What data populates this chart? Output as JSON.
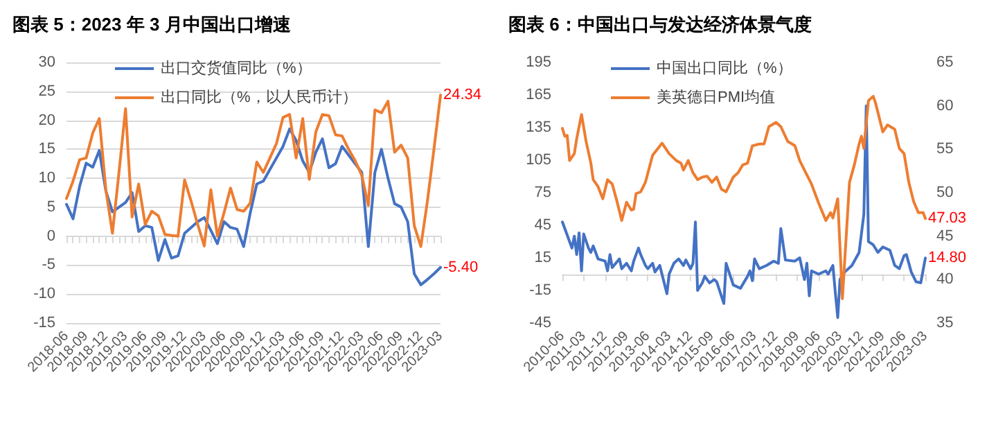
{
  "chart_data": [
    {
      "type": "line",
      "title": "图表 5：2023 年 3 月中国出口增速",
      "categories": [
        "2018-06",
        null,
        null,
        "2018-09",
        null,
        null,
        "2018-12",
        null,
        null,
        "2019-03",
        null,
        null,
        "2019-06",
        null,
        null,
        "2019-09",
        null,
        null,
        "2019-12",
        null,
        null,
        "2020-03",
        null,
        null,
        "2020-06",
        null,
        null,
        "2020-09",
        null,
        null,
        "2020-12",
        null,
        null,
        "2021-03",
        null,
        null,
        "2021-06",
        null,
        null,
        "2021-09",
        null,
        null,
        "2021-12",
        null,
        null,
        "2022-03",
        null,
        null,
        "2022-06",
        null,
        null,
        "2022-09",
        null,
        null,
        "2022-12",
        null,
        null,
        "2023-03"
      ],
      "series": [
        {
          "name": "出口交货值同比（%）",
          "color": "#4472c4",
          "values": [
            5.5,
            3.0,
            8.6,
            12.6,
            11.9,
            14.8,
            7.8,
            4.2,
            5.0,
            5.8,
            7.5,
            0.8,
            1.8,
            1.5,
            -4.2,
            -0.6,
            -3.8,
            -3.4,
            0.5,
            1.5,
            2.5,
            3.2,
            1.0,
            -1.3,
            2.5,
            1.5,
            1.2,
            -1.8,
            4.0,
            9.0,
            9.5,
            11.5,
            13.5,
            15.5,
            18.5,
            16.5,
            13.0,
            11.0,
            14.5,
            16.8,
            11.8,
            12.5,
            15.5,
            14.0,
            12.5,
            11.0,
            -1.8,
            11.0,
            15.0,
            10.0,
            5.6,
            5.0,
            2.5,
            -6.5,
            -8.4,
            -7.5,
            -6.5,
            -5.4
          ],
          "value_labels": [
            null,
            null,
            null,
            null,
            null,
            null,
            null,
            null,
            null,
            null,
            null,
            null,
            null,
            null,
            null,
            null,
            null,
            null,
            null,
            null,
            null,
            null,
            null,
            null,
            null,
            null,
            null,
            null,
            null,
            null,
            null,
            null,
            null,
            null,
            null,
            null,
            null,
            null,
            null,
            null,
            null,
            null,
            null,
            null,
            null,
            null,
            null,
            null,
            null,
            null,
            null,
            null,
            null,
            null,
            null,
            null,
            null,
            "-5.40"
          ]
        },
        {
          "name": "出口同比（%，以人民币计）",
          "color": "#ed7d31",
          "values": [
            6.5,
            9.5,
            13.2,
            13.5,
            17.8,
            20.3,
            8.0,
            0.5,
            11.0,
            22.0,
            3.3,
            9.0,
            2.0,
            4.3,
            3.5,
            0.3,
            0.1,
            0.0,
            9.7,
            6.0,
            2.0,
            -1.7,
            8.0,
            0.0,
            4.0,
            8.3,
            4.6,
            4.3,
            5.7,
            12.8,
            11.0,
            13.5,
            16.0,
            20.5,
            21.0,
            13.5,
            20.3,
            9.8,
            18.0,
            21.0,
            20.8,
            17.5,
            17.3,
            15.0,
            13.0,
            10.5,
            5.3,
            21.8,
            21.3,
            23.3,
            14.5,
            15.7,
            13.5,
            1.8,
            -1.8,
            6.0,
            15.0,
            24.34
          ],
          "value_labels": [
            null,
            null,
            null,
            null,
            null,
            null,
            null,
            null,
            null,
            null,
            null,
            null,
            null,
            null,
            null,
            null,
            null,
            null,
            null,
            null,
            null,
            null,
            null,
            null,
            null,
            null,
            null,
            null,
            null,
            null,
            null,
            null,
            null,
            null,
            null,
            null,
            null,
            null,
            null,
            null,
            null,
            null,
            null,
            null,
            null,
            null,
            null,
            null,
            null,
            null,
            null,
            null,
            null,
            null,
            null,
            null,
            null,
            "24.34"
          ]
        }
      ],
      "ylim": [
        -15,
        30
      ],
      "yticks": [
        -15,
        -10,
        -5,
        0,
        5,
        10,
        15,
        20,
        25,
        30
      ],
      "grid": "y",
      "legend": "top"
    },
    {
      "type": "line",
      "title": "图表 6：中国出口与发达经济体景气度",
      "xlim": [
        "2010-06",
        "2023-03"
      ],
      "xticks": [
        "2010-06",
        "2011-03",
        "2011-12",
        "2012-09",
        "2013-06",
        "2014-03",
        "2014-12",
        "2015-09",
        "2016-06",
        "2017-03",
        "2017-12",
        "2018-09",
        "2019-06",
        "2020-03",
        "2020-12",
        "2021-09",
        "2022-06",
        "2023-03"
      ],
      "series": [
        {
          "name": "中国出口同比（%）",
          "color": "#4472c4",
          "x": [
            "2010-06",
            "2010-10",
            "2010-11",
            "2010-12",
            "2011-01",
            "2011-02",
            "2011-03",
            "2011-05",
            "2011-06",
            "2011-07",
            "2011-09",
            "2011-12",
            "2012-01",
            "2012-02",
            "2012-03",
            "2012-06",
            "2012-07",
            "2012-09",
            "2012-11",
            "2012-12",
            "2013-02",
            "2013-03",
            "2013-05",
            "2013-06",
            "2013-08",
            "2013-09",
            "2013-11",
            "2014-02",
            "2014-03",
            "2014-05",
            "2014-07",
            "2014-09",
            "2014-10",
            "2014-12",
            "2015-01",
            "2015-02",
            "2015-03",
            "2015-05",
            "2015-06",
            "2015-08",
            "2015-10",
            "2015-11",
            "2016-02",
            "2016-03",
            "2016-06",
            "2016-09",
            "2016-12",
            "2017-01",
            "2017-02",
            "2017-03",
            "2017-05",
            "2017-08",
            "2017-11",
            "2018-01",
            "2018-02",
            "2018-04",
            "2018-08",
            "2018-10",
            "2018-12",
            "2019-01",
            "2019-02",
            "2019-03",
            "2019-06",
            "2019-09",
            "2019-10",
            "2019-12",
            "2020-01",
            "2020-02",
            "2020-03",
            "2020-05",
            "2020-08",
            "2020-11",
            "2021-01",
            "2021-02",
            "2021-03",
            "2021-05",
            "2021-07",
            "2021-09",
            "2021-12",
            "2022-02",
            "2022-04",
            "2022-06",
            "2022-07",
            "2022-09",
            "2022-11",
            "2023-01",
            "2023-03"
          ],
          "values": [
            48,
            24,
            35,
            18,
            38,
            3,
            37,
            24,
            20,
            26,
            14,
            12,
            3,
            18,
            6,
            14,
            5,
            10,
            3,
            12,
            24,
            18,
            8,
            5,
            10,
            2,
            8,
            -18,
            0,
            10,
            14,
            8,
            13,
            5,
            10,
            48,
            -15,
            -8,
            -2,
            -8,
            -5,
            -7,
            -27,
            10,
            -10,
            -13,
            -2,
            3,
            -6,
            14,
            5,
            8,
            12,
            10,
            42,
            13,
            12,
            15,
            -5,
            10,
            -20,
            3,
            0,
            3,
            0,
            8,
            -17,
            -40,
            -5,
            2,
            8,
            20,
            55,
            155,
            30,
            27,
            20,
            25,
            22,
            8,
            5,
            17,
            18,
            2,
            -7,
            -8,
            14.8
          ],
          "value_labels": [
            null,
            null,
            null,
            null,
            null,
            null,
            null,
            null,
            null,
            null,
            null,
            null,
            null,
            null,
            null,
            null,
            null,
            null,
            null,
            null,
            null,
            null,
            null,
            null,
            null,
            null,
            null,
            null,
            null,
            null,
            null,
            null,
            null,
            null,
            null,
            null,
            null,
            null,
            null,
            null,
            null,
            null,
            null,
            null,
            null,
            null,
            null,
            null,
            null,
            null,
            null,
            null,
            null,
            null,
            null,
            null,
            null,
            null,
            null,
            null,
            null,
            null,
            null,
            null,
            null,
            null,
            null,
            null,
            null,
            null,
            null,
            null,
            null,
            null,
            null,
            null,
            null,
            null,
            null,
            null,
            null,
            null,
            null,
            null,
            null,
            null,
            "14.80"
          ]
        },
        {
          "name": "美英德日PMI均值",
          "color": "#ed7d31",
          "axis": "y2",
          "x": [
            "2010-06",
            "2010-07",
            "2010-08",
            "2010-09",
            "2010-11",
            "2010-12",
            "2011-02",
            "2011-04",
            "2011-06",
            "2011-07",
            "2011-09",
            "2011-11",
            "2012-01",
            "2012-03",
            "2012-05",
            "2012-07",
            "2012-09",
            "2012-11",
            "2012-12",
            "2013-01",
            "2013-03",
            "2013-05",
            "2013-08",
            "2013-12",
            "2014-03",
            "2014-06",
            "2014-08",
            "2014-09",
            "2014-11",
            "2015-01",
            "2015-03",
            "2015-05",
            "2015-07",
            "2015-09",
            "2015-11",
            "2016-01",
            "2016-03",
            "2016-06",
            "2016-08",
            "2016-10",
            "2016-12",
            "2017-02",
            "2017-05",
            "2017-07",
            "2017-09",
            "2017-12",
            "2018-02",
            "2018-05",
            "2018-08",
            "2018-10",
            "2018-12",
            "2019-03",
            "2019-06",
            "2019-09",
            "2019-11",
            "2019-12",
            "2020-02",
            "2020-04",
            "2020-07",
            "2020-09",
            "2020-11",
            "2020-12",
            "2021-01",
            "2021-03",
            "2021-05",
            "2021-06",
            "2021-09",
            "2021-11",
            "2022-02",
            "2022-04",
            "2022-06",
            "2022-08",
            "2022-10",
            "2022-12",
            "2023-02",
            "2023-03"
          ],
          "values": [
            57.4,
            56.5,
            56.6,
            53.7,
            54.5,
            56.2,
            59.0,
            55.9,
            53.4,
            51.5,
            50.7,
            49.3,
            51.5,
            51.0,
            49.0,
            46.8,
            48.9,
            48.0,
            48.1,
            49.9,
            50.1,
            51.2,
            54.3,
            55.7,
            54.5,
            53.7,
            53.4,
            52.6,
            53.7,
            52.3,
            51.5,
            51.8,
            51.9,
            51.2,
            51.8,
            50.4,
            50.1,
            51.8,
            52.3,
            53.2,
            53.4,
            55.4,
            55.6,
            55.6,
            57.6,
            58.1,
            57.6,
            55.9,
            55.4,
            53.7,
            52.6,
            51.0,
            48.8,
            46.8,
            47.7,
            47.1,
            49.3,
            37.8,
            51.2,
            53.2,
            55.6,
            56.5,
            55.1,
            60.6,
            61.1,
            60.3,
            57.0,
            57.8,
            57.3,
            55.1,
            54.5,
            51.2,
            49.0,
            47.7,
            47.7,
            47.03
          ],
          "value_labels": [
            null,
            null,
            null,
            null,
            null,
            null,
            null,
            null,
            null,
            null,
            null,
            null,
            null,
            null,
            null,
            null,
            null,
            null,
            null,
            null,
            null,
            null,
            null,
            null,
            null,
            null,
            null,
            null,
            null,
            null,
            null,
            null,
            null,
            null,
            null,
            null,
            null,
            null,
            null,
            null,
            null,
            null,
            null,
            null,
            null,
            null,
            null,
            null,
            null,
            null,
            null,
            null,
            null,
            null,
            null,
            null,
            null,
            null,
            null,
            null,
            null,
            null,
            null,
            null,
            null,
            null,
            null,
            null,
            null,
            null,
            null,
            null,
            null,
            null,
            null,
            "47.03"
          ]
        }
      ],
      "ylim": [
        -45,
        195
      ],
      "yticks": [
        -45,
        -15,
        15,
        45,
        75,
        105,
        135,
        165,
        195
      ],
      "y2lim": [
        35,
        65
      ],
      "y2ticks": [
        35,
        40,
        45,
        50,
        55,
        60,
        65
      ],
      "legend": "top"
    }
  ]
}
